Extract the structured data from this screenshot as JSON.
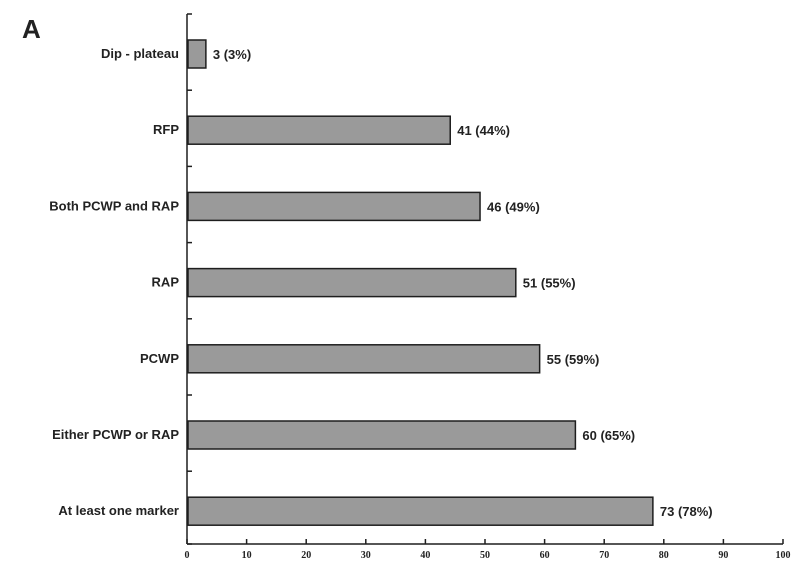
{
  "panel_letter": "A",
  "chart_data": {
    "type": "bar",
    "orientation": "horizontal",
    "categories": [
      "Dip - plateau",
      "RFP",
      "Both PCWP and RAP",
      "RAP",
      "PCWP",
      "Either PCWP or RAP",
      "At least one marker"
    ],
    "values": [
      3,
      44,
      49,
      55,
      59,
      65,
      78
    ],
    "data_labels": [
      "3 (3%)",
      "41 (44%)",
      "46 (49%)",
      "51 (55%)",
      "55 (59%)",
      "60 (65%)",
      "73 (78%)"
    ],
    "xlim": [
      0,
      100
    ],
    "xticks": [
      0,
      10,
      20,
      30,
      40,
      50,
      60,
      70,
      80,
      90,
      100
    ],
    "title": "",
    "xlabel": "",
    "ylabel": "",
    "grid": false,
    "bar_color": "#9a9a9a"
  }
}
